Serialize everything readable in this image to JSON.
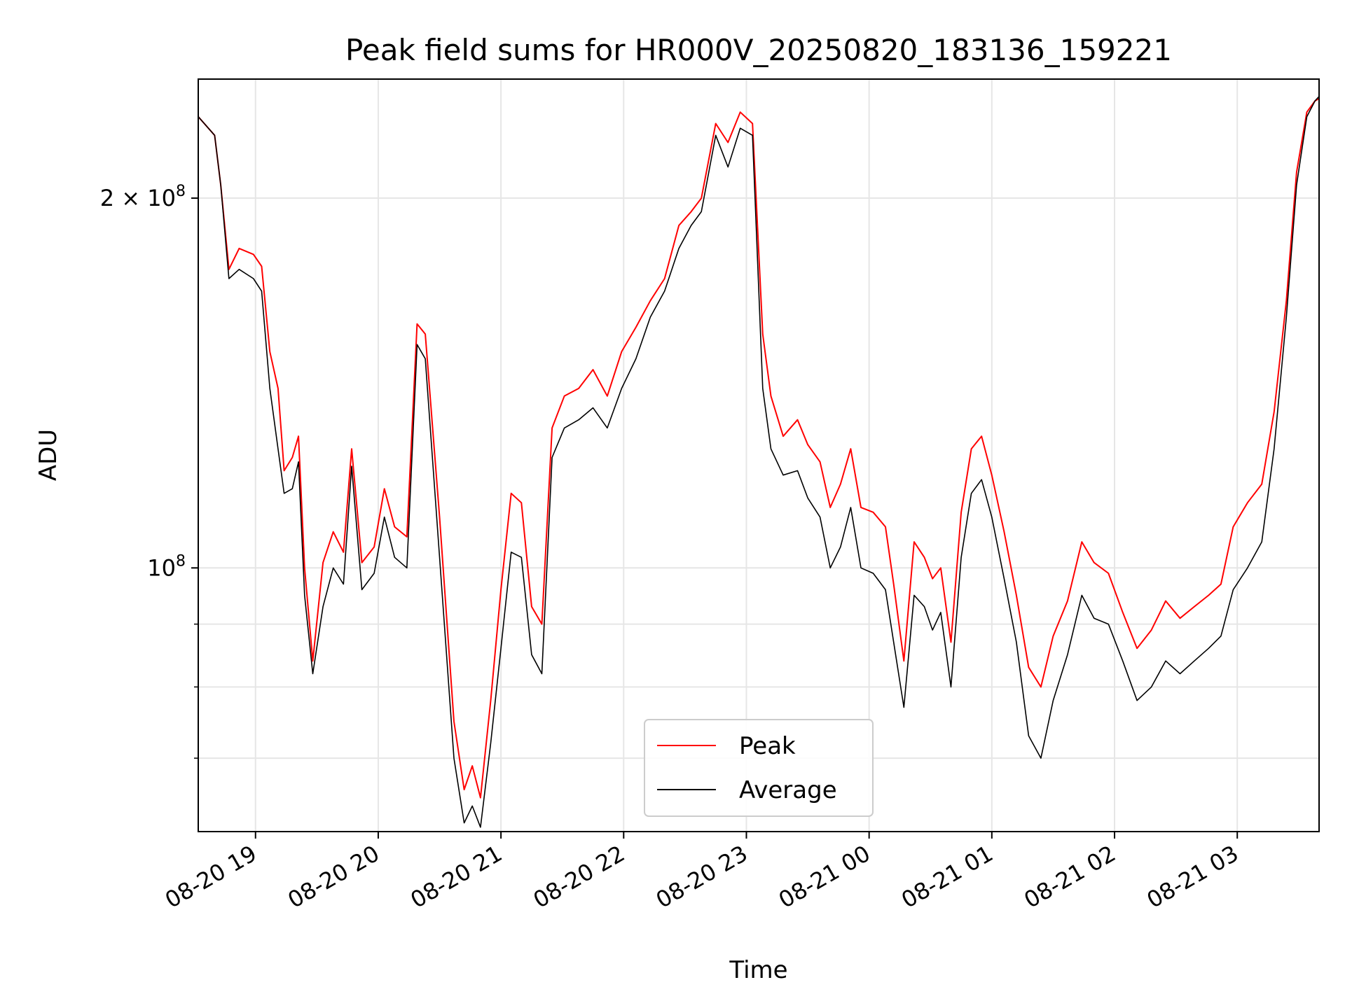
{
  "chart_data": {
    "type": "line",
    "title": "Peak field sums for HR000V_20250820_183136_159221",
    "xlabel": "Time",
    "ylabel": "ADU",
    "yscale": "log",
    "ylim": [
      61000000,
      250000000
    ],
    "xlim": [
      "2025-08-20 18:32",
      "2025-08-21 03:40"
    ],
    "grid": true,
    "legend": {
      "position": "bottom-center",
      "entries": [
        "Peak",
        "Average"
      ]
    },
    "x_ticks": [
      {
        "time": "2025-08-20 19:00",
        "label": "08-20 19"
      },
      {
        "time": "2025-08-20 20:00",
        "label": "08-20 20"
      },
      {
        "time": "2025-08-20 21:00",
        "label": "08-20 21"
      },
      {
        "time": "2025-08-20 22:00",
        "label": "08-20 22"
      },
      {
        "time": "2025-08-20 23:00",
        "label": "08-20 23"
      },
      {
        "time": "2025-08-21 00:00",
        "label": "08-21 00"
      },
      {
        "time": "2025-08-21 01:00",
        "label": "08-21 01"
      },
      {
        "time": "2025-08-21 02:00",
        "label": "08-21 02"
      },
      {
        "time": "2025-08-21 03:00",
        "label": "08-21 03"
      }
    ],
    "y_ticks": [
      {
        "value": 100000000,
        "base": "10",
        "exp": "8",
        "coef": ""
      },
      {
        "value": 200000000,
        "base": "10",
        "exp": "8",
        "coef": "2 × "
      }
    ],
    "y_minor_ticks": [
      70000000,
      80000000,
      90000000
    ],
    "series": [
      {
        "name": "Peak",
        "color": "#ff0000",
        "x": [
          "2025-08-20 18:32",
          "2025-08-20 18:40",
          "2025-08-20 18:43",
          "2025-08-20 18:47",
          "2025-08-20 18:52",
          "2025-08-20 18:59",
          "2025-08-20 19:03",
          "2025-08-20 19:07",
          "2025-08-20 19:11",
          "2025-08-20 19:14",
          "2025-08-20 19:18",
          "2025-08-20 19:21",
          "2025-08-20 19:24",
          "2025-08-20 19:28",
          "2025-08-20 19:33",
          "2025-08-20 19:38",
          "2025-08-20 19:43",
          "2025-08-20 19:47",
          "2025-08-20 19:52",
          "2025-08-20 19:58",
          "2025-08-20 20:03",
          "2025-08-20 20:08",
          "2025-08-20 20:14",
          "2025-08-20 20:19",
          "2025-08-20 20:23",
          "2025-08-20 20:30",
          "2025-08-20 20:37",
          "2025-08-20 20:42",
          "2025-08-20 20:46",
          "2025-08-20 20:50",
          "2025-08-20 20:55",
          "2025-08-20 21:00",
          "2025-08-20 21:05",
          "2025-08-20 21:10",
          "2025-08-20 21:15",
          "2025-08-20 21:20",
          "2025-08-20 21:25",
          "2025-08-20 21:31",
          "2025-08-20 21:38",
          "2025-08-20 21:45",
          "2025-08-20 21:52",
          "2025-08-20 21:59",
          "2025-08-20 22:06",
          "2025-08-20 22:13",
          "2025-08-20 22:20",
          "2025-08-20 22:27",
          "2025-08-20 22:33",
          "2025-08-20 22:38",
          "2025-08-20 22:45",
          "2025-08-20 22:51",
          "2025-08-20 22:57",
          "2025-08-20 23:03",
          "2025-08-20 23:08",
          "2025-08-20 23:12",
          "2025-08-20 23:18",
          "2025-08-20 23:25",
          "2025-08-20 23:30",
          "2025-08-20 23:36",
          "2025-08-20 23:41",
          "2025-08-20 23:46",
          "2025-08-20 23:51",
          "2025-08-20 23:56",
          "2025-08-21 00:02",
          "2025-08-21 00:08",
          "2025-08-21 00:12",
          "2025-08-21 00:17",
          "2025-08-21 00:22",
          "2025-08-21 00:27",
          "2025-08-21 00:31",
          "2025-08-21 00:35",
          "2025-08-21 00:40",
          "2025-08-21 00:45",
          "2025-08-21 00:50",
          "2025-08-21 00:55",
          "2025-08-21 01:00",
          "2025-08-21 01:06",
          "2025-08-21 01:12",
          "2025-08-21 01:18",
          "2025-08-21 01:24",
          "2025-08-21 01:30",
          "2025-08-21 01:37",
          "2025-08-21 01:44",
          "2025-08-21 01:50",
          "2025-08-21 01:57",
          "2025-08-21 02:04",
          "2025-08-21 02:11",
          "2025-08-21 02:18",
          "2025-08-21 02:25",
          "2025-08-21 02:32",
          "2025-08-21 02:39",
          "2025-08-21 02:46",
          "2025-08-21 02:52",
          "2025-08-21 02:58",
          "2025-08-21 03:05",
          "2025-08-21 03:12",
          "2025-08-21 03:18",
          "2025-08-21 03:24",
          "2025-08-21 03:29",
          "2025-08-21 03:34",
          "2025-08-21 03:38",
          "2025-08-21 03:40"
        ],
        "values": [
          233000000,
          225000000,
          205000000,
          175000000,
          182000000,
          180000000,
          176000000,
          150000000,
          140000000,
          120000000,
          123000000,
          128000000,
          100000000,
          84000000,
          101000000,
          107000000,
          103000000,
          125000000,
          101000000,
          104000000,
          116000000,
          108000000,
          106000000,
          158000000,
          155000000,
          110000000,
          75000000,
          66000000,
          69000000,
          65000000,
          78000000,
          96000000,
          115000000,
          113000000,
          93000000,
          90000000,
          130000000,
          138000000,
          140000000,
          145000000,
          138000000,
          150000000,
          157000000,
          165000000,
          172000000,
          190000000,
          195000000,
          200000000,
          230000000,
          222000000,
          235000000,
          230000000,
          155000000,
          138000000,
          128000000,
          132000000,
          126000000,
          122000000,
          112000000,
          117000000,
          125000000,
          112000000,
          111000000,
          108000000,
          97000000,
          84000000,
          105000000,
          102000000,
          98000000,
          100000000,
          87000000,
          111000000,
          125000000,
          128000000,
          119000000,
          107000000,
          95000000,
          83000000,
          80000000,
          88000000,
          94000000,
          105000000,
          101000000,
          99000000,
          92000000,
          86000000,
          89000000,
          94000000,
          91000000,
          93000000,
          95000000,
          97000000,
          108000000,
          113000000,
          117000000,
          134000000,
          165000000,
          210000000,
          235000000,
          240000000,
          241000000
        ]
      },
      {
        "name": "Average",
        "color": "#000000",
        "x": [
          "2025-08-20 18:32",
          "2025-08-20 18:40",
          "2025-08-20 18:43",
          "2025-08-20 18:47",
          "2025-08-20 18:52",
          "2025-08-20 18:59",
          "2025-08-20 19:03",
          "2025-08-20 19:07",
          "2025-08-20 19:11",
          "2025-08-20 19:14",
          "2025-08-20 19:18",
          "2025-08-20 19:21",
          "2025-08-20 19:24",
          "2025-08-20 19:28",
          "2025-08-20 19:33",
          "2025-08-20 19:38",
          "2025-08-20 19:43",
          "2025-08-20 19:47",
          "2025-08-20 19:52",
          "2025-08-20 19:58",
          "2025-08-20 20:03",
          "2025-08-20 20:08",
          "2025-08-20 20:14",
          "2025-08-20 20:19",
          "2025-08-20 20:23",
          "2025-08-20 20:30",
          "2025-08-20 20:37",
          "2025-08-20 20:42",
          "2025-08-20 20:46",
          "2025-08-20 20:50",
          "2025-08-20 20:55",
          "2025-08-20 21:00",
          "2025-08-20 21:05",
          "2025-08-20 21:10",
          "2025-08-20 21:15",
          "2025-08-20 21:20",
          "2025-08-20 21:25",
          "2025-08-20 21:31",
          "2025-08-20 21:38",
          "2025-08-20 21:45",
          "2025-08-20 21:52",
          "2025-08-20 21:59",
          "2025-08-20 22:06",
          "2025-08-20 22:13",
          "2025-08-20 22:20",
          "2025-08-20 22:27",
          "2025-08-20 22:33",
          "2025-08-20 22:38",
          "2025-08-20 22:45",
          "2025-08-20 22:51",
          "2025-08-20 22:57",
          "2025-08-20 23:03",
          "2025-08-20 23:08",
          "2025-08-20 23:12",
          "2025-08-20 23:18",
          "2025-08-20 23:25",
          "2025-08-20 23:30",
          "2025-08-20 23:36",
          "2025-08-20 23:41",
          "2025-08-20 23:46",
          "2025-08-20 23:51",
          "2025-08-20 23:56",
          "2025-08-21 00:02",
          "2025-08-21 00:08",
          "2025-08-21 00:12",
          "2025-08-21 00:17",
          "2025-08-21 00:22",
          "2025-08-21 00:27",
          "2025-08-21 00:31",
          "2025-08-21 00:35",
          "2025-08-21 00:40",
          "2025-08-21 00:45",
          "2025-08-21 00:50",
          "2025-08-21 00:55",
          "2025-08-21 01:00",
          "2025-08-21 01:06",
          "2025-08-21 01:12",
          "2025-08-21 01:18",
          "2025-08-21 01:24",
          "2025-08-21 01:30",
          "2025-08-21 01:37",
          "2025-08-21 01:44",
          "2025-08-21 01:50",
          "2025-08-21 01:57",
          "2025-08-21 02:04",
          "2025-08-21 02:11",
          "2025-08-21 02:18",
          "2025-08-21 02:25",
          "2025-08-21 02:32",
          "2025-08-21 02:39",
          "2025-08-21 02:46",
          "2025-08-21 02:52",
          "2025-08-21 02:58",
          "2025-08-21 03:05",
          "2025-08-21 03:12",
          "2025-08-21 03:18",
          "2025-08-21 03:24",
          "2025-08-21 03:29",
          "2025-08-21 03:34",
          "2025-08-21 03:38",
          "2025-08-21 03:40"
        ],
        "values": [
          233000000,
          225000000,
          205000000,
          172000000,
          175000000,
          172000000,
          168000000,
          140000000,
          125000000,
          115000000,
          116000000,
          122000000,
          95000000,
          82000000,
          93000000,
          100000000,
          97000000,
          121000000,
          96000000,
          99000000,
          110000000,
          102000000,
          100000000,
          152000000,
          148000000,
          102000000,
          70000000,
          62000000,
          64000000,
          61500000,
          72000000,
          86000000,
          103000000,
          102000000,
          85000000,
          82000000,
          123000000,
          130000000,
          132000000,
          135000000,
          130000000,
          140000000,
          148000000,
          160000000,
          168000000,
          182000000,
          190000000,
          195000000,
          225000000,
          212000000,
          228000000,
          225000000,
          140000000,
          125000000,
          119000000,
          120000000,
          114000000,
          110000000,
          100000000,
          104000000,
          112000000,
          100000000,
          99000000,
          96000000,
          87000000,
          77000000,
          95000000,
          93000000,
          89000000,
          92000000,
          80000000,
          102000000,
          115000000,
          118000000,
          110000000,
          98000000,
          87000000,
          73000000,
          70000000,
          78000000,
          85000000,
          95000000,
          91000000,
          90000000,
          84000000,
          78000000,
          80000000,
          84000000,
          82000000,
          84000000,
          86000000,
          88000000,
          96000000,
          100000000,
          105000000,
          125000000,
          160000000,
          205000000,
          233000000,
          240000000,
          242000000
        ]
      }
    ]
  }
}
